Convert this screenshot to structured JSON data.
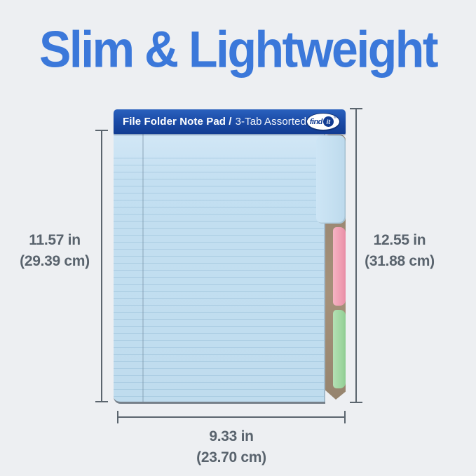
{
  "title": "Slim & Lightweight",
  "product": {
    "header_bold": "File Folder Note Pad /",
    "header_regular": "3-Tab Assorted",
    "brand_find": "find",
    "brand_it": "it",
    "brand_reg": "®"
  },
  "dimensions": {
    "left": {
      "inches": "11.57 in",
      "cm": "(29.39 cm)"
    },
    "right": {
      "inches": "12.55 in",
      "cm": "(31.88 cm)"
    },
    "bottom": {
      "inches": "9.33 in",
      "cm": "(23.70 cm)"
    }
  },
  "colors": {
    "accent_blue": "#3b78da",
    "header_blue": "#16439d",
    "sheet_blue": "#c3dff1",
    "rule_line": "#a6c9e0",
    "tab_pink": "#ef9fb3",
    "tab_green": "#a3d8a4",
    "kraft_brown": "#9b8a74",
    "measure_line_gray": "#5b656e",
    "label_gray": "#59636d",
    "background": "#edeff2"
  }
}
